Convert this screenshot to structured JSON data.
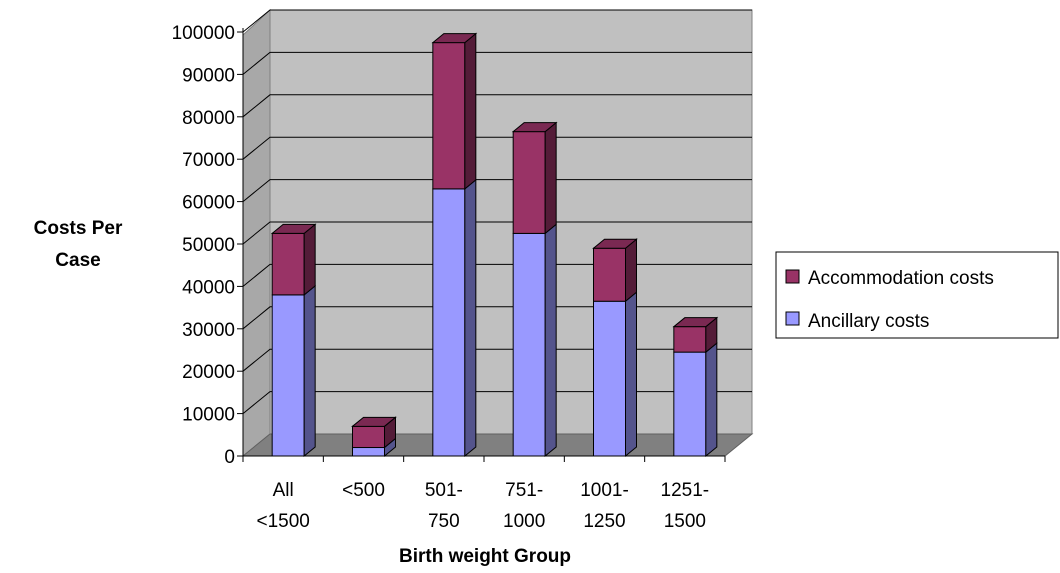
{
  "chart_data": {
    "type": "bar",
    "stacked": true,
    "three_d": true,
    "title": "",
    "xlabel": "Birth weight Group",
    "ylabel": [
      "Costs Per",
      "Case"
    ],
    "ylim": [
      0,
      100000
    ],
    "yticks": [
      0,
      10000,
      20000,
      30000,
      40000,
      50000,
      60000,
      70000,
      80000,
      90000,
      100000
    ],
    "grid": true,
    "legend_position": "right",
    "categories": [
      [
        "All",
        "<1500"
      ],
      [
        "<500"
      ],
      [
        "501-",
        "750"
      ],
      [
        "751-",
        "1000"
      ],
      [
        "1001-",
        "1250"
      ],
      [
        "1251-",
        "1500"
      ]
    ],
    "series": [
      {
        "name": "Ancillary costs",
        "color": "#9999ff",
        "values": [
          38000,
          2000,
          63000,
          52500,
          36500,
          24500
        ]
      },
      {
        "name": "Accommodation costs",
        "color": "#993366",
        "values": [
          14500,
          5000,
          34500,
          24000,
          12500,
          6000
        ]
      }
    ],
    "legend_order": [
      "Accommodation costs",
      "Ancillary costs"
    ],
    "colors": {
      "wall": "#c0c0c0",
      "floor": "#808080",
      "grid": "#000000"
    }
  }
}
